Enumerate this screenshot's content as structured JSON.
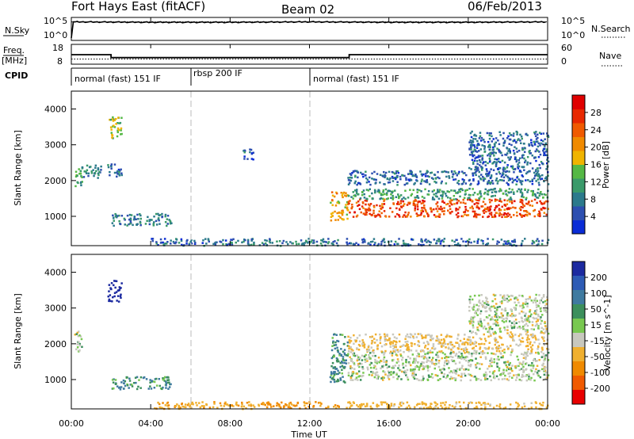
{
  "header": {
    "title": "Fort Hays East (fitACF)",
    "beam": "Beam 02",
    "date": "06/Feb/2013"
  },
  "aux_labels": {
    "nsky": "N.Sky",
    "nsearch": "N.Search",
    "freq_top": "Freq.",
    "freq_unit": "[MHz]",
    "nave": "Nave",
    "cpid": "CPID",
    "noise_ticks_left": [
      "10^5",
      "10^0"
    ],
    "noise_ticks_right": [
      "10^5",
      "10^0"
    ],
    "freq_ticks": [
      "18",
      "8"
    ],
    "nave_ticks": [
      "60",
      "0"
    ]
  },
  "cpid_segments": [
    {
      "label": "normal (fast) 151 IF",
      "start_hour": 0,
      "end_hour": 6
    },
    {
      "label": "rbsp 200 IF",
      "start_hour": 6,
      "end_hour": 12
    },
    {
      "label": "normal (fast) 151 IF",
      "start_hour": 12,
      "end_hour": 24
    }
  ],
  "xaxis": {
    "title": "Time UT",
    "ticks": [
      "00:00",
      "04:00",
      "08:00",
      "12:00",
      "16:00",
      "20:00",
      "00:00"
    ],
    "range_hours": [
      0,
      24
    ]
  },
  "yaxis": {
    "title": "Slant Range [km]",
    "ticks": [
      "1000",
      "2000",
      "3000",
      "4000"
    ],
    "range_km": [
      180,
      4500
    ]
  },
  "power_colorbar": {
    "title": "Power [dB]",
    "ticks": [
      "4",
      "8",
      "12",
      "16",
      "20",
      "24",
      "28"
    ],
    "colors": [
      "#0a2cd6",
      "#2d4fb0",
      "#2c7a8c",
      "#3a9a6a",
      "#55b845",
      "#f0b400",
      "#f08a00",
      "#f05a00",
      "#e82800",
      "#e00000"
    ]
  },
  "velocity_colorbar": {
    "title": "Velocity [m s^-1]",
    "ticks": [
      "200",
      "100",
      "50",
      "15",
      "-15",
      "-50",
      "-100",
      "-200"
    ],
    "colors": [
      "#1c2aa0",
      "#2d5bb5",
      "#3f7aa0",
      "#3c8f5c",
      "#78c850",
      "#c8c8be",
      "#f0b030",
      "#f08a00",
      "#f05a00",
      "#e80000"
    ]
  },
  "chart_data": [
    {
      "type": "line",
      "panel": "noise",
      "series": [
        {
          "name": "N.Sky",
          "x": [
            0,
            0.05,
            0.1,
            4,
            8,
            12,
            16,
            20,
            24
          ],
          "y_log10": [
            0.2,
            4.2,
            4.1,
            4.0,
            4.0,
            4.1,
            4.0,
            4.0,
            4.1
          ]
        },
        {
          "name": "N.Search",
          "x": [
            0,
            24
          ],
          "y_log10": [
            4.1,
            4.1
          ]
        }
      ]
    },
    {
      "type": "line",
      "panel": "frequency",
      "series": [
        {
          "name": "Freq.",
          "x": [
            0,
            2.0,
            2.0,
            14.0,
            14.0,
            24
          ],
          "y": [
            13,
            13,
            11,
            11,
            13,
            13
          ]
        },
        {
          "name": "Nave",
          "x": [
            0,
            24
          ],
          "y": [
            10,
            10
          ]
        }
      ]
    },
    {
      "type": "heatmap",
      "panel": "power",
      "x_unit": "hour UT",
      "y_unit": "km",
      "regions": [
        {
          "t": [
            0.1,
            0.5
          ],
          "r": [
            1800,
            2400
          ],
          "db": 14
        },
        {
          "t": [
            0.5,
            1.5
          ],
          "r": [
            2100,
            2500
          ],
          "db": 10
        },
        {
          "t": [
            1.8,
            2.5
          ],
          "r": [
            3200,
            3800
          ],
          "db": 16
        },
        {
          "t": [
            1.8,
            2.5
          ],
          "r": [
            2100,
            2500
          ],
          "db": 8
        },
        {
          "t": [
            2.0,
            5.0
          ],
          "r": [
            750,
            1100
          ],
          "db": 10
        },
        {
          "t": [
            4.0,
            9.5
          ],
          "r": [
            200,
            400
          ],
          "db": 8
        },
        {
          "t": [
            9.5,
            13.5
          ],
          "r": [
            200,
            400
          ],
          "db": 10
        },
        {
          "t": [
            13.8,
            24
          ],
          "r": [
            200,
            400
          ],
          "db": 8
        },
        {
          "t": [
            8.6,
            9.2
          ],
          "r": [
            2600,
            2900
          ],
          "db": 8
        },
        {
          "t": [
            13.0,
            13.9
          ],
          "r": [
            900,
            1700
          ],
          "db": 20
        },
        {
          "t": [
            13.9,
            24
          ],
          "r": [
            1000,
            1500
          ],
          "db": 26
        },
        {
          "t": [
            13.9,
            24
          ],
          "r": [
            1500,
            1800
          ],
          "db": 12
        },
        {
          "t": [
            13.9,
            24
          ],
          "r": [
            1900,
            2300
          ],
          "db": 8
        },
        {
          "t": [
            20.0,
            24
          ],
          "r": [
            2300,
            3400
          ],
          "db": 8
        }
      ]
    },
    {
      "type": "heatmap",
      "panel": "velocity",
      "x_unit": "hour UT",
      "y_unit": "km",
      "regions": [
        {
          "t": [
            0.1,
            0.5
          ],
          "r": [
            1800,
            2400
          ],
          "v": 0
        },
        {
          "t": [
            1.8,
            2.5
          ],
          "r": [
            3200,
            3800
          ],
          "v": 180
        },
        {
          "t": [
            2.0,
            5.0
          ],
          "r": [
            750,
            1100
          ],
          "v": 30
        },
        {
          "t": [
            4.0,
            9.5
          ],
          "r": [
            200,
            400
          ],
          "v": -40
        },
        {
          "t": [
            9.5,
            13.5
          ],
          "r": [
            200,
            400
          ],
          "v": -60
        },
        {
          "t": [
            13.8,
            24
          ],
          "r": [
            200,
            400
          ],
          "v": -30
        },
        {
          "t": [
            13.0,
            13.9
          ],
          "r": [
            900,
            2300
          ],
          "v": 30
        },
        {
          "t": [
            13.9,
            24
          ],
          "r": [
            1000,
            1800
          ],
          "v": 0
        },
        {
          "t": [
            13.9,
            24
          ],
          "r": [
            1800,
            2300
          ],
          "v": -20
        },
        {
          "t": [
            20.0,
            24
          ],
          "r": [
            2300,
            3400
          ],
          "v": 0
        }
      ]
    }
  ]
}
